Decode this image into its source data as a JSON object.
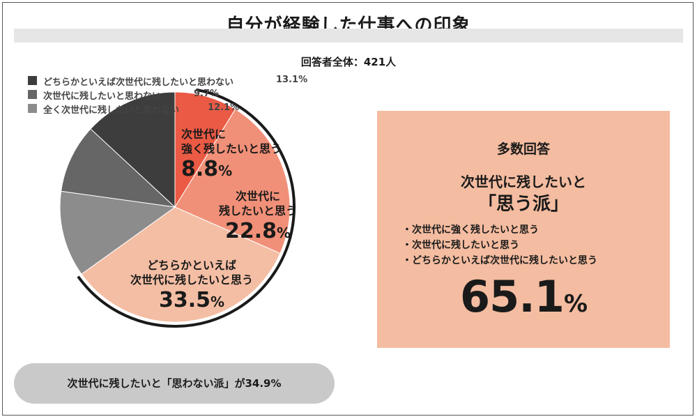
{
  "title": "自分が経験した仕事への印象",
  "subtitle": "回答者全体：421人",
  "legend": [
    {
      "label": "どちらかといえば次世代に残したいと思わない",
      "value": "13.1%",
      "color": "#3d3d3d"
    },
    {
      "label": "次世代に残したいと思わない",
      "value": "9.7%",
      "color": "#666666"
    },
    {
      "label": "全く次世代に残したいと思わない",
      "value": "12.1%",
      "color": "#8c8c8c"
    }
  ],
  "chart_data": {
    "type": "pie",
    "title": "自分が経験した仕事への印象",
    "subtitle": "回答者全体：421人",
    "slices": [
      {
        "label": "次世代に強く残したいと思う",
        "value": 8.8,
        "color": "#ea5a44"
      },
      {
        "label": "次世代に残したいと思う",
        "value": 22.8,
        "color": "#f19078"
      },
      {
        "label": "どちらかといえば次世代に残したいと思う",
        "value": 33.5,
        "color": "#f4bea4"
      },
      {
        "label": "全く次世代に残したいと思わない",
        "value": 12.1,
        "color": "#8c8c8c"
      },
      {
        "label": "次世代に残したいと思わない",
        "value": 9.7,
        "color": "#666666"
      },
      {
        "label": "どちらかといえば次世代に残したいと思わない",
        "value": 13.1,
        "color": "#3d3d3d"
      }
    ]
  },
  "pie_labels": [
    {
      "lines": [
        "次世代に",
        "強く残したいと思う"
      ],
      "num": "8.8",
      "unit": "%"
    },
    {
      "lines": [
        "次世代に",
        "残したいと思う"
      ],
      "num": "22.8",
      "unit": "%"
    },
    {
      "lines": [
        "どちらかといえば",
        "次世代に残したいと思う"
      ],
      "num": "33.5",
      "unit": "%"
    }
  ],
  "summary": {
    "heading": "多数回答",
    "line1": "次世代に残したいと",
    "line2": "「思う派」",
    "items": [
      "・次世代に強く残したいと思う",
      "・次世代に残したいと思う",
      "・どちらかといえば次世代に残したいと思う"
    ],
    "total_num": "65.1",
    "total_unit": "%"
  },
  "bottom_note": "次世代に残したいと「思わない派」が34.9%",
  "colors": {
    "summary_bg": "#f4bca0",
    "pill_bg": "#c9c9c9",
    "title_band": "#e6e6e6"
  }
}
